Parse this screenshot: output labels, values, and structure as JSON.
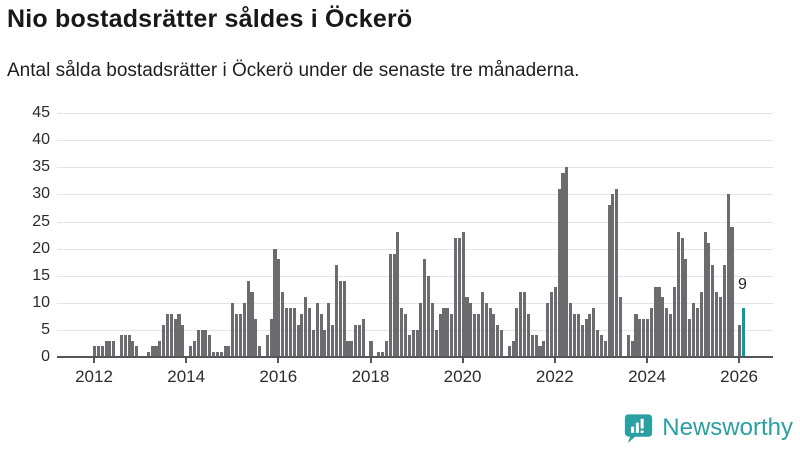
{
  "header": {
    "title": "Nio bostadsrätter såldes i Öckerö",
    "subtitle": "Antal sålda bostadsrätter i Öckerö under de senaste tre månaderna."
  },
  "chart_data": {
    "type": "bar",
    "title": "Nio bostadsrätter såldes i Öckerö",
    "xlabel": "",
    "ylabel": "",
    "frequency": "monthly",
    "x_start": "2012-01",
    "x_end": "2026-02",
    "x_tick_labels": [
      "2012",
      "2014",
      "2016",
      "2018",
      "2020",
      "2022",
      "2024",
      "2026"
    ],
    "y_ticks": [
      0,
      5,
      10,
      15,
      20,
      25,
      30,
      35,
      40,
      45
    ],
    "ylim": [
      0,
      46
    ],
    "grid": "horizontal",
    "bar_color": "#6b6b70",
    "values": [
      2,
      2,
      2,
      3,
      3,
      3,
      0,
      4,
      4,
      4,
      3,
      2,
      0,
      0,
      1,
      2,
      2,
      3,
      6,
      8,
      8,
      7,
      8,
      6,
      0,
      2,
      3,
      5,
      5,
      5,
      4,
      1,
      1,
      1,
      2,
      2,
      10,
      8,
      8,
      10,
      14,
      12,
      7,
      2,
      0,
      4,
      7,
      20,
      18,
      12,
      9,
      9,
      9,
      6,
      8,
      11,
      9,
      5,
      10,
      8,
      5,
      10,
      6,
      17,
      14,
      14,
      3,
      3,
      6,
      6,
      7,
      0,
      3,
      0,
      1,
      1,
      3,
      19,
      19,
      23,
      9,
      8,
      4,
      5,
      5,
      10,
      18,
      15,
      10,
      5,
      8,
      9,
      9,
      8,
      22,
      22,
      23,
      11,
      10,
      8,
      8,
      12,
      10,
      9,
      8,
      6,
      5,
      0,
      2,
      3,
      9,
      12,
      12,
      8,
      4,
      4,
      2,
      3,
      10,
      12,
      13,
      31,
      34,
      35,
      10,
      8,
      8,
      6,
      7,
      8,
      9,
      5,
      4,
      3,
      28,
      30,
      31,
      11,
      0,
      4,
      3,
      8,
      7,
      7,
      7,
      9,
      13,
      13,
      11,
      9,
      8,
      13,
      23,
      22,
      18,
      7,
      10,
      9,
      12,
      23,
      21,
      17,
      12,
      11,
      17,
      30,
      24,
      0,
      6,
      9
    ],
    "highlight": {
      "index": 169,
      "value": 9,
      "label": "9",
      "color": "#00a0a4",
      "meaning": "senaste tre månaderna"
    }
  },
  "footer": {
    "brand": "Newsworthy",
    "brand_color": "#2aa0a2",
    "logo_icon": "newsworthy-speech-bubble-bar-chart-icon"
  }
}
